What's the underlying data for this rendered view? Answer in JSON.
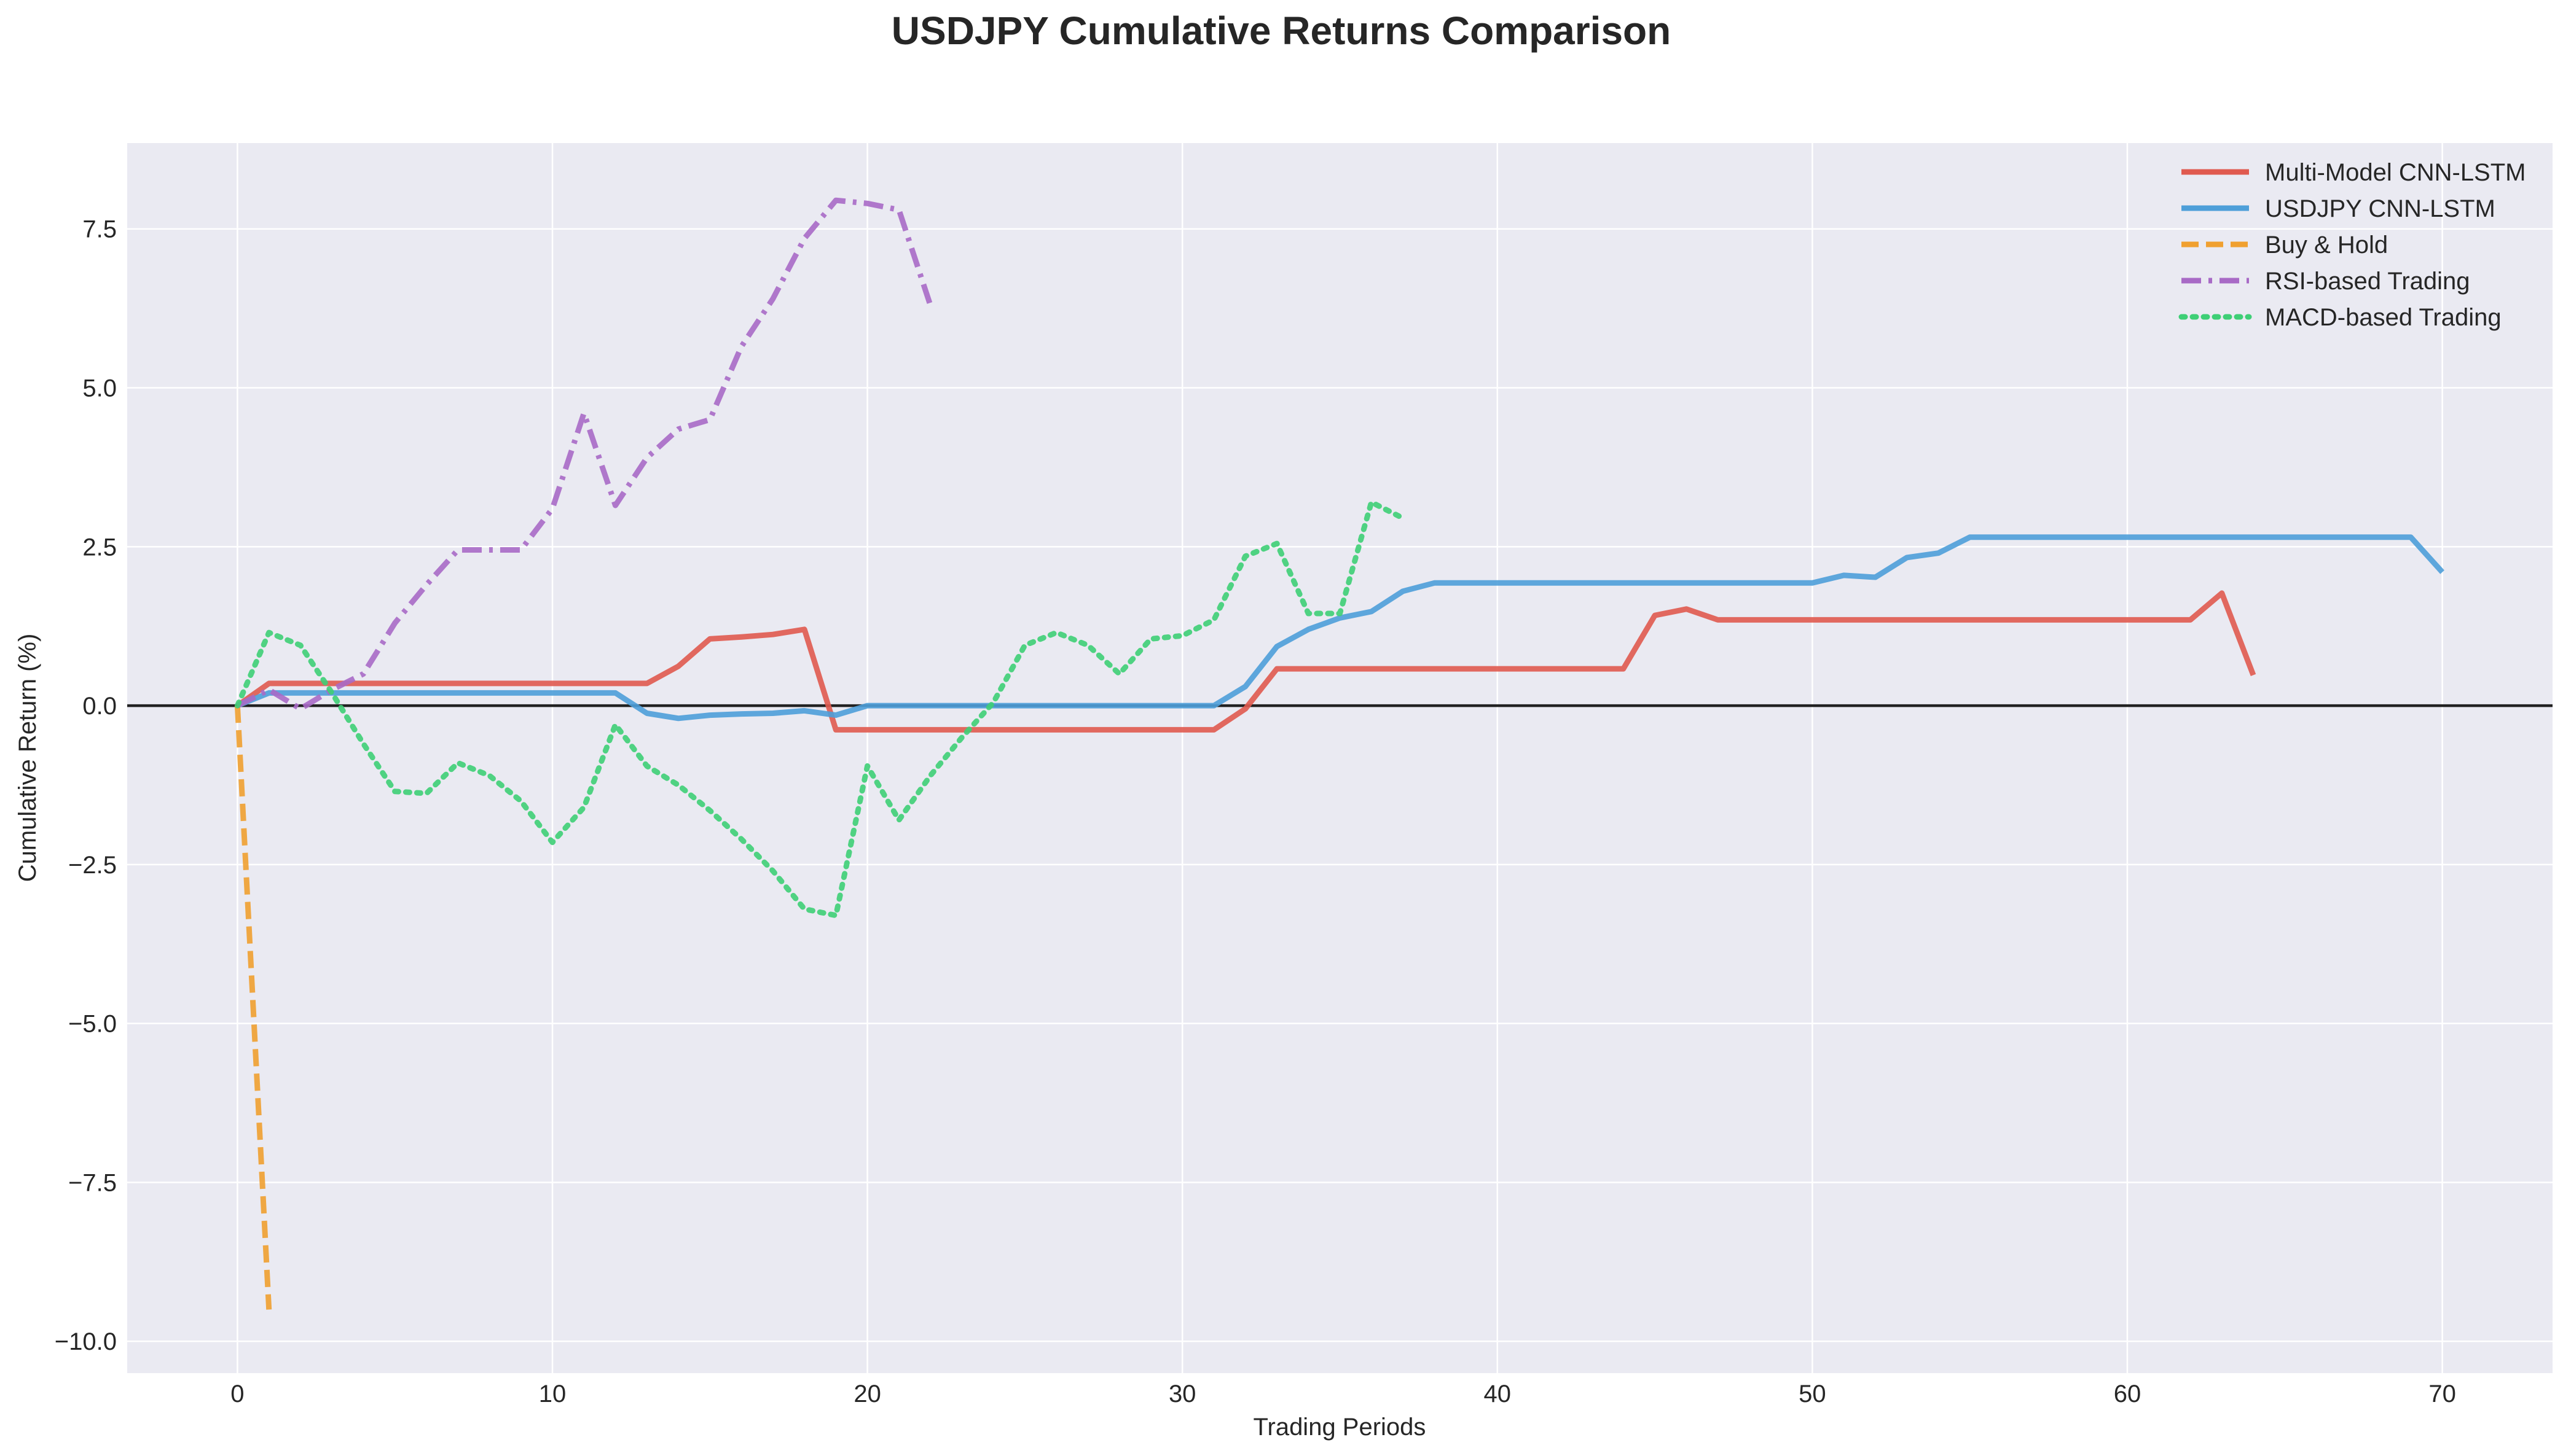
{
  "chart_data": {
    "type": "line",
    "title": "USDJPY Cumulative Returns Comparison",
    "xlabel": "Trading Periods",
    "ylabel": "Cumulative Return (%)",
    "xlim": [
      -3.5,
      73.5
    ],
    "ylim": [
      -10.5,
      8.85
    ],
    "xticks": [
      0,
      10,
      20,
      30,
      40,
      50,
      60,
      70
    ],
    "yticks": [
      -10.0,
      -7.5,
      -5.0,
      -2.5,
      0.0,
      2.5,
      5.0,
      7.5
    ],
    "ytick_labels": [
      "−10.0",
      "−7.5",
      "−5.0",
      "−2.5",
      "0.0",
      "2.5",
      "5.0",
      "7.5"
    ],
    "grid": true,
    "zero_line": true,
    "legend_position": "top-right",
    "series": [
      {
        "name": "Multi-Model CNN-LSTM",
        "color": "#e05a4f",
        "dash": "solid",
        "x": [
          0,
          1,
          2,
          3,
          4,
          5,
          6,
          7,
          8,
          9,
          10,
          11,
          12,
          13,
          14,
          15,
          16,
          17,
          18,
          19,
          20,
          21,
          22,
          23,
          24,
          25,
          26,
          27,
          28,
          29,
          30,
          31,
          32,
          33,
          34,
          35,
          36,
          37,
          38,
          39,
          40,
          41,
          42,
          43,
          44,
          45,
          46,
          47,
          48,
          49,
          50,
          51,
          52,
          53,
          54,
          55,
          56,
          57,
          58,
          59,
          60,
          61,
          62,
          63,
          64
        ],
        "values": [
          0,
          0.35,
          0.35,
          0.35,
          0.35,
          0.35,
          0.35,
          0.35,
          0.35,
          0.35,
          0.35,
          0.35,
          0.35,
          0.35,
          0.62,
          1.05,
          1.08,
          1.12,
          1.2,
          -0.38,
          -0.38,
          -0.38,
          -0.38,
          -0.38,
          -0.38,
          -0.38,
          -0.38,
          -0.38,
          -0.38,
          -0.38,
          -0.38,
          -0.38,
          -0.05,
          0.58,
          0.58,
          0.58,
          0.58,
          0.58,
          0.58,
          0.58,
          0.58,
          0.58,
          0.58,
          0.58,
          0.58,
          1.42,
          1.52,
          1.35,
          1.35,
          1.35,
          1.35,
          1.35,
          1.35,
          1.35,
          1.35,
          1.35,
          1.35,
          1.35,
          1.35,
          1.35,
          1.35,
          1.35,
          1.35,
          1.77,
          0.48
        ]
      },
      {
        "name": "USDJPY CNN-LSTM",
        "color": "#4e9fd9",
        "dash": "solid",
        "x": [
          0,
          1,
          2,
          3,
          4,
          5,
          6,
          7,
          8,
          9,
          10,
          11,
          12,
          13,
          14,
          15,
          16,
          17,
          18,
          19,
          20,
          21,
          22,
          23,
          24,
          25,
          26,
          27,
          28,
          29,
          30,
          31,
          32,
          33,
          34,
          35,
          36,
          37,
          38,
          39,
          40,
          41,
          42,
          43,
          44,
          45,
          46,
          47,
          48,
          49,
          50,
          51,
          52,
          53,
          54,
          55,
          56,
          57,
          58,
          59,
          60,
          61,
          62,
          63,
          64,
          65,
          66,
          67,
          68,
          69,
          70
        ],
        "values": [
          0,
          0.2,
          0.2,
          0.2,
          0.2,
          0.2,
          0.2,
          0.2,
          0.2,
          0.2,
          0.2,
          0.2,
          0.2,
          -0.12,
          -0.2,
          -0.15,
          -0.13,
          -0.12,
          -0.08,
          -0.15,
          0,
          0,
          0,
          0,
          0,
          0,
          0,
          0,
          0,
          0,
          0,
          0,
          0.3,
          0.93,
          1.2,
          1.38,
          1.48,
          1.8,
          1.93,
          1.93,
          1.93,
          1.93,
          1.93,
          1.93,
          1.93,
          1.93,
          1.93,
          1.93,
          1.93,
          1.93,
          1.93,
          2.05,
          2.02,
          2.33,
          2.4,
          2.65,
          2.65,
          2.65,
          2.65,
          2.65,
          2.65,
          2.65,
          2.65,
          2.65,
          2.65,
          2.65,
          2.65,
          2.65,
          2.65,
          2.65,
          2.1
        ]
      },
      {
        "name": "Buy & Hold",
        "color": "#f0a030",
        "dash": "dashed",
        "x": [
          0,
          1
        ],
        "values": [
          0,
          -9.5
        ]
      },
      {
        "name": "RSI-based Trading",
        "color": "#a86ac6",
        "dash": "dashdot",
        "x": [
          0,
          1,
          2,
          3,
          4,
          5,
          6,
          7,
          8,
          9,
          10,
          11,
          12,
          13,
          14,
          15,
          16,
          17,
          18,
          19,
          20,
          21,
          22
        ],
        "values": [
          0,
          0.25,
          -0.05,
          0.25,
          0.5,
          1.3,
          1.9,
          2.45,
          2.45,
          2.45,
          3.1,
          4.6,
          3.15,
          3.9,
          4.35,
          4.5,
          5.65,
          6.4,
          7.35,
          7.95,
          7.9,
          7.8,
          6.3
        ]
      },
      {
        "name": "MACD-based Trading",
        "color": "#3ecf76",
        "dash": "dotted",
        "x": [
          0,
          1,
          2,
          3,
          4,
          5,
          6,
          7,
          8,
          9,
          10,
          11,
          12,
          13,
          14,
          15,
          16,
          17,
          18,
          19,
          20,
          21,
          22,
          23,
          24,
          25,
          26,
          27,
          28,
          29,
          30,
          31,
          32,
          33,
          34,
          35,
          36,
          37
        ],
        "values": [
          0,
          1.15,
          0.95,
          0.2,
          -0.6,
          -1.35,
          -1.38,
          -0.9,
          -1.1,
          -1.5,
          -2.15,
          -1.6,
          -0.3,
          -0.95,
          -1.25,
          -1.65,
          -2.1,
          -2.6,
          -3.2,
          -3.3,
          -0.95,
          -1.8,
          -1.1,
          -0.5,
          0.05,
          0.95,
          1.15,
          0.95,
          0.5,
          1.05,
          1.1,
          1.35,
          2.35,
          2.55,
          1.45,
          1.45,
          3.2,
          2.95
        ]
      }
    ]
  }
}
